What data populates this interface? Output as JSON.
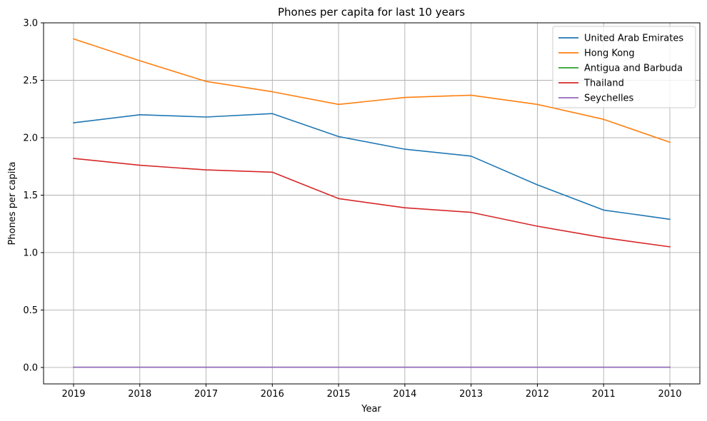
{
  "chart_data": {
    "type": "line",
    "title": "Phones per capita for last 10 years",
    "xlabel": "Year",
    "ylabel": "Phones per capita",
    "categories": [
      "2019",
      "2018",
      "2017",
      "2016",
      "2015",
      "2014",
      "2013",
      "2012",
      "2011",
      "2010"
    ],
    "ylim": [
      -0.143,
      3.0
    ],
    "yticks": [
      "0.0",
      "0.5",
      "1.0",
      "1.5",
      "2.0",
      "2.5",
      "3.0"
    ],
    "ytick_values": [
      0.0,
      0.5,
      1.0,
      1.5,
      2.0,
      2.5,
      3.0
    ],
    "grid": true,
    "legend_position": "top-right",
    "series": [
      {
        "name": "United Arab Emirates",
        "color": "#1f77b4",
        "values": [
          2.13,
          2.2,
          2.18,
          2.21,
          2.01,
          1.9,
          1.84,
          1.59,
          1.37,
          1.29
        ]
      },
      {
        "name": "Hong Kong",
        "color": "#ff7f0e",
        "values": [
          2.86,
          2.67,
          2.49,
          2.4,
          2.29,
          2.35,
          2.37,
          2.29,
          2.16,
          1.96
        ]
      },
      {
        "name": "Antigua and Barbuda",
        "color": "#2ca02c",
        "values": [
          0.002,
          0.002,
          0.002,
          0.002,
          0.002,
          0.002,
          0.002,
          0.002,
          0.002,
          0.002
        ]
      },
      {
        "name": "Thailand",
        "color": "#d62728",
        "values": [
          1.82,
          1.76,
          1.72,
          1.7,
          1.47,
          1.39,
          1.35,
          1.23,
          1.13,
          1.05
        ]
      },
      {
        "name": "Seychelles",
        "color": "#9467bd",
        "values": [
          0.002,
          0.002,
          0.002,
          0.002,
          0.002,
          0.002,
          0.002,
          0.002,
          0.002,
          0.002
        ]
      }
    ]
  }
}
